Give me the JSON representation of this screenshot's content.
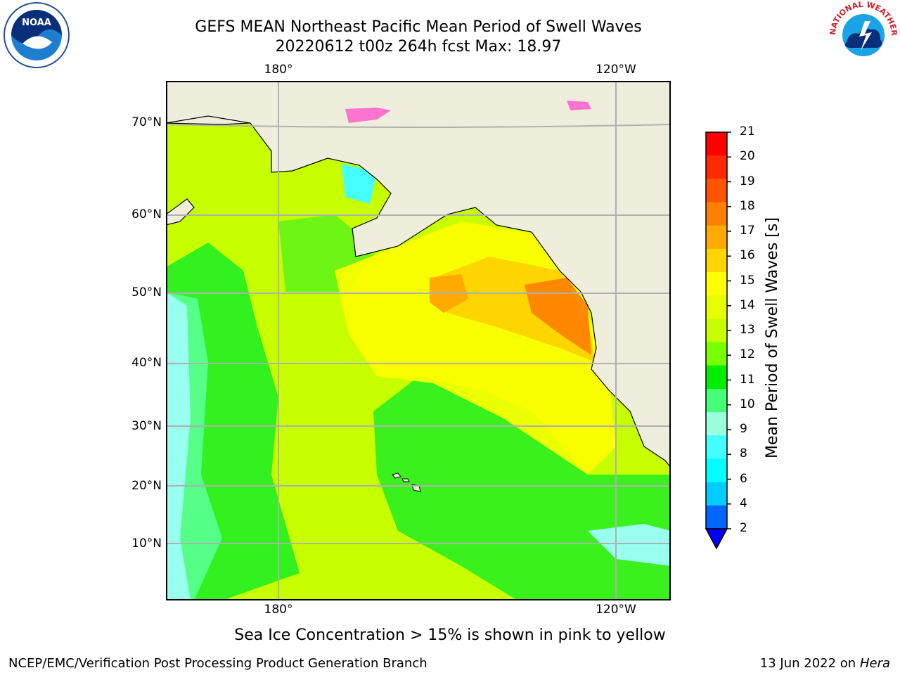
{
  "title": "GEFS MEAN Northeast Pacific Mean Period of Swell Waves",
  "subtitle": "20220612 t00z 264h fcst   Max: 18.97",
  "lat_labels": [
    "70°N",
    "60°N",
    "50°N",
    "40°N",
    "30°N",
    "20°N",
    "10°N"
  ],
  "lon_labels_top": [
    "180°",
    "120°W"
  ],
  "lon_labels_bottom": [
    "180°",
    "120°W"
  ],
  "colorbar": {
    "label": "Mean Period of Swell Waves [s]",
    "ticks": [
      "21",
      "20",
      "19",
      "18",
      "17",
      "16",
      "15",
      "14",
      "13",
      "12",
      "11",
      "10",
      "9",
      "8",
      "6",
      "4",
      "2"
    ],
    "colors": [
      "#ff0000",
      "#ff2a00",
      "#ff5500",
      "#ff8000",
      "#ffaa00",
      "#ffd500",
      "#ffff00",
      "#e6ff00",
      "#c8ff00",
      "#78ff00",
      "#00ee00",
      "#44ff77",
      "#99ffdd",
      "#44ffff",
      "#00ffff",
      "#00ccff",
      "#0066ff"
    ],
    "extend_color": "#0000ff"
  },
  "caption": "Sea Ice Concentration > 15% is shown in pink to yellow",
  "credit": "NCEP/EMC/Verification Post Processing Product Generation Branch",
  "date": "13 Jun 2022 on",
  "host": "Hera",
  "logos": {
    "left": "noaa-logo",
    "right": "nws-logo",
    "nws_ring_text": "NATIONAL WEATHER SERVICE",
    "noaa_text": "NOAA"
  }
}
